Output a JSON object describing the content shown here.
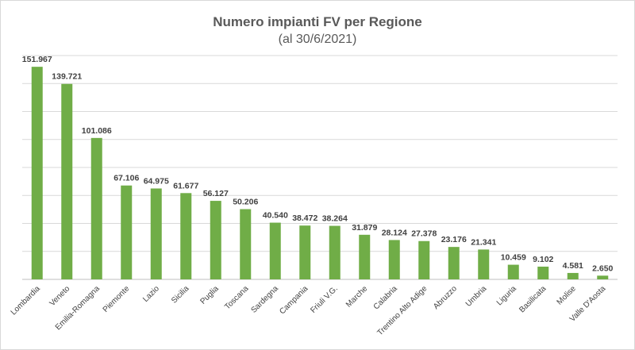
{
  "chart_data": {
    "type": "bar",
    "title": "Numero impianti FV per Regione",
    "subtitle": "(al 30/6/2021)",
    "xlabel": "",
    "ylabel": "",
    "ylim": [
      0,
      160000
    ],
    "grid": true,
    "legend": "none",
    "color": "#70ad47",
    "categories": [
      "Lombardia",
      "Veneto",
      "Emilia-Romagna",
      "Piemonte",
      "Lazio",
      "Sicilia",
      "Puglia",
      "Toscana",
      "Sardegna",
      "Campania",
      "Friuli V.G.",
      "Marche",
      "Calabria",
      "Trentino Alto Adige",
      "Abruzzo",
      "Umbria",
      "Liguria",
      "Basilicata",
      "Molise",
      "Valle D'Aosta"
    ],
    "values": [
      151967,
      139721,
      101086,
      67106,
      64975,
      61677,
      56127,
      50206,
      40540,
      38472,
      38264,
      31879,
      28124,
      27378,
      23176,
      21341,
      10459,
      9102,
      4581,
      2650
    ],
    "value_labels": [
      "151.967",
      "139.721",
      "101.086",
      "67.106",
      "64.975",
      "61.677",
      "56.127",
      "50.206",
      "40.540",
      "38.472",
      "38.264",
      "31.879",
      "28.124",
      "27.378",
      "23.176",
      "21.341",
      "10.459",
      "9.102",
      "4.581",
      "2.650"
    ]
  }
}
